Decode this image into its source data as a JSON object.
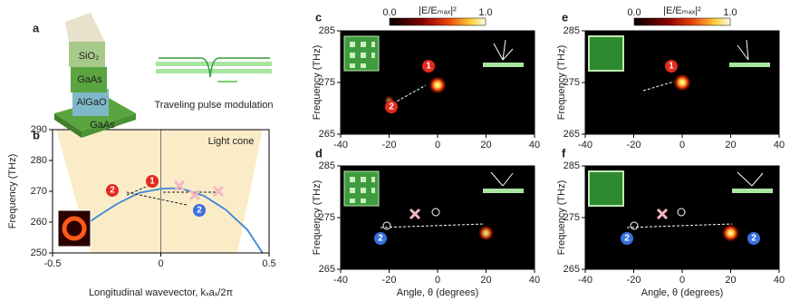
{
  "panel_labels": [
    "a",
    "b",
    "c",
    "d",
    "e",
    "f"
  ],
  "schematic": {
    "layers": [
      "SiO₂",
      "GaAs",
      "AlGaO",
      "GaAs"
    ],
    "caption": "Traveling pulse modulation"
  },
  "chart_data": [
    {
      "type": "line",
      "ylabel": "Frequency (THz)",
      "xlabel": "Longitudinal wavevector, kₓaₓ/2π",
      "region_label": "Light cone",
      "x": [
        -0.33,
        -0.3,
        -0.2,
        -0.1,
        0,
        0.05,
        0.1,
        0.2,
        0.3,
        0.4,
        0.47
      ],
      "series": [
        {
          "color": "#3a87d8",
          "values": [
            260,
            261.5,
            266,
            269.5,
            270.8,
            271,
            270.8,
            268.5,
            264,
            257.5,
            250
          ]
        }
      ],
      "xlim": [
        -0.5,
        0.5
      ],
      "xticks": [
        -0.5,
        0,
        0.5
      ],
      "ylim": [
        250,
        290
      ],
      "yticks": [
        250,
        260,
        270,
        280,
        290
      ],
      "vline": 0,
      "annotations": [
        "1",
        "2",
        "2"
      ]
    },
    {
      "type": "heatmap",
      "ylabel": "Frequency (THz)",
      "x": [
        0,
        -20
      ],
      "y": [
        274.5,
        271.5
      ],
      "values": [
        1.0,
        0.3
      ],
      "xlim": [
        -40,
        40
      ],
      "xticks": [
        -40,
        -20,
        0,
        20,
        40
      ],
      "ylim": [
        265,
        285
      ],
      "yticks": [
        265,
        275,
        285
      ],
      "colorbar": {
        "label": "|E/Eₘₐₓ|²",
        "lim": [
          0,
          1
        ],
        "ticks": [
          {
            "value": 0,
            "label": "0.0"
          },
          {
            "value": 1,
            "label": "1.0"
          }
        ]
      },
      "annotations": [
        "1",
        "2"
      ]
    },
    {
      "type": "heatmap",
      "ylabel": "Frequency (THz)",
      "xlabel": "Angle, θ (degrees)",
      "x": [
        20
      ],
      "y": [
        272
      ],
      "values": [
        0.8
      ],
      "xlim": [
        -40,
        40
      ],
      "xticks": [
        -40,
        -20,
        0,
        20,
        40
      ],
      "ylim": [
        265,
        285
      ],
      "yticks": [
        265,
        275,
        285
      ],
      "annotations": [
        "2"
      ]
    },
    {
      "type": "heatmap",
      "ylabel": "Frequency (THz)",
      "x": [
        0
      ],
      "y": [
        275
      ],
      "values": [
        1.0
      ],
      "xlim": [
        -40,
        40
      ],
      "xticks": [
        -40,
        -20,
        0,
        20,
        40
      ],
      "ylim": [
        265,
        285
      ],
      "yticks": [
        265,
        275,
        285
      ],
      "colorbar": {
        "label": "|E/Eₘₐₓ|²",
        "lim": [
          0,
          1
        ],
        "ticks": [
          {
            "value": 0,
            "label": "0.0"
          },
          {
            "value": 1,
            "label": "1.0"
          }
        ]
      },
      "annotations": [
        "1"
      ]
    },
    {
      "type": "heatmap",
      "ylabel": "Frequency (THz)",
      "xlabel": "Angle, θ (degrees)",
      "x": [
        20
      ],
      "y": [
        272
      ],
      "values": [
        1.0
      ],
      "xlim": [
        -40,
        40
      ],
      "xticks": [
        -40,
        -20,
        0,
        20,
        40
      ],
      "ylim": [
        265,
        285
      ],
      "yticks": [
        265,
        275,
        285
      ],
      "annotations": [
        "2",
        "2"
      ]
    }
  ]
}
